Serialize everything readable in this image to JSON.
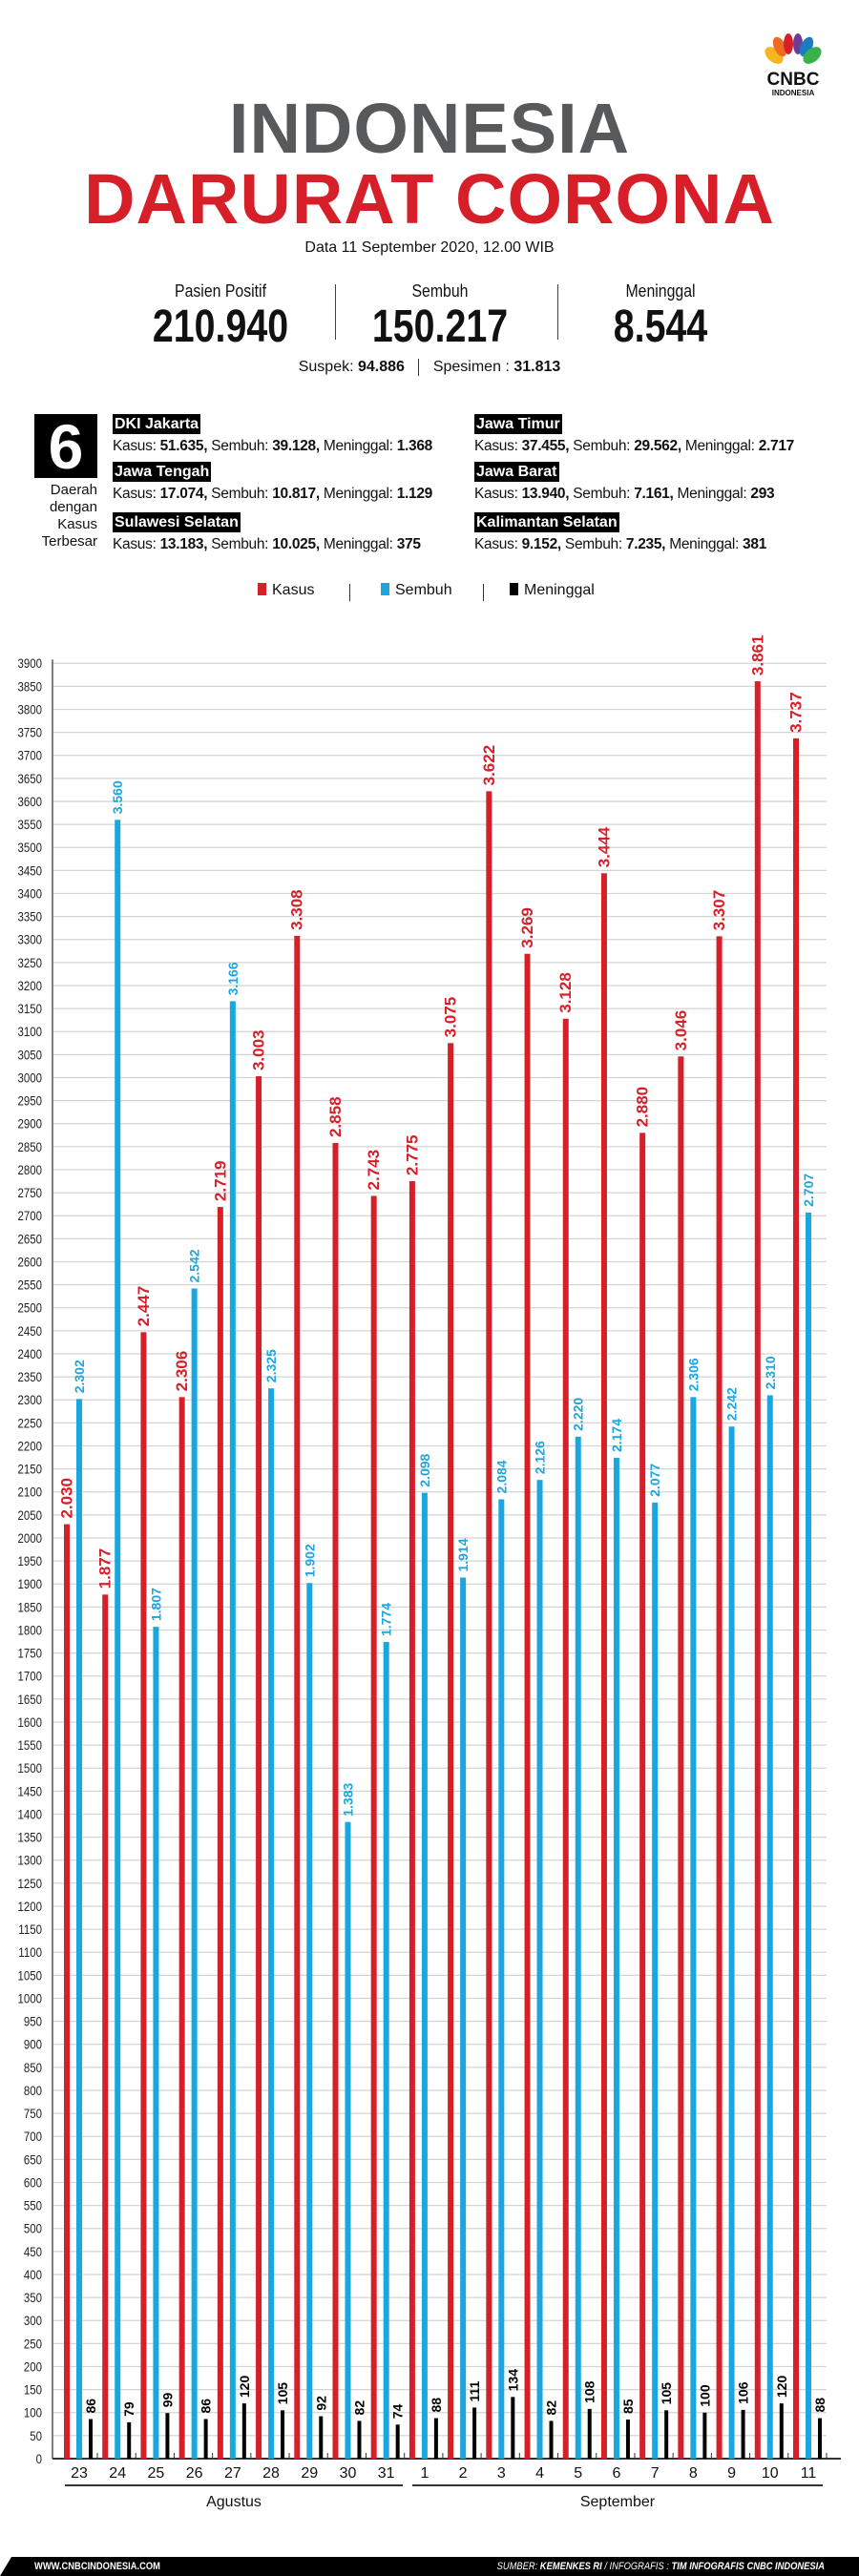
{
  "brand": {
    "logo_text": "CNBC",
    "logo_sub": "INDONESIA"
  },
  "header": {
    "title_line1": "INDONESIA",
    "title_line2": "DARURAT CORONA",
    "subtitle": "Data 11 September 2020, 12.00 WIB"
  },
  "stats": {
    "positif": {
      "label": "Pasien Positif",
      "value": "210.940"
    },
    "sembuh": {
      "label": "Sembuh",
      "value": "150.217"
    },
    "meninggal": {
      "label": "Meninggal",
      "value": "8.544"
    },
    "suspek_label": "Suspek:",
    "suspek_value": "94.886",
    "spesimen_label": "Spesimen :",
    "spesimen_value": "31.813"
  },
  "regions_box": {
    "number": "6",
    "caption": [
      "Daerah",
      "dengan",
      "Kasus",
      "Terbesar"
    ]
  },
  "region_labels": {
    "kasus": "Kasus:",
    "sembuh": "Sembuh:",
    "meninggal": "Meninggal:"
  },
  "regions": [
    {
      "name": "DKI Jakarta",
      "kasus": "51.635,",
      "sembuh": "39.128,",
      "meninggal": "1.368"
    },
    {
      "name": "Jawa Timur",
      "kasus": "37.455,",
      "sembuh": "29.562,",
      "meninggal": "2.717"
    },
    {
      "name": "Jawa Tengah",
      "kasus": "17.074,",
      "sembuh": "10.817,",
      "meninggal": "1.129"
    },
    {
      "name": "Jawa Barat",
      "kasus": "13.940,",
      "sembuh": "7.161,",
      "meninggal": "293"
    },
    {
      "name": "Sulawesi Selatan",
      "kasus": "13.183,",
      "sembuh": "10.025,",
      "meninggal": "375"
    },
    {
      "name": "Kalimantan Selatan",
      "kasus": "9.152,",
      "sembuh": "7.235,",
      "meninggal": "381"
    }
  ],
  "colors": {
    "kasus": "#d71f2a",
    "sembuh": "#1aa7e0",
    "meninggal": "#000000",
    "grid": "#d4d4d4",
    "title_gray": "#58595b"
  },
  "chart_data": {
    "type": "bar",
    "title": "",
    "xlabel": "",
    "ylabel": "",
    "ylim": [
      0,
      3900
    ],
    "ytick_step": 50,
    "grid": true,
    "legend_position": "top-center",
    "categories": [
      "23",
      "24",
      "25",
      "26",
      "27",
      "28",
      "29",
      "30",
      "31",
      "1",
      "2",
      "3",
      "4",
      "5",
      "6",
      "7",
      "8",
      "9",
      "10",
      "11"
    ],
    "months": [
      {
        "name": "Agustus",
        "from": 0,
        "to": 8
      },
      {
        "name": "September",
        "from": 9,
        "to": 19
      }
    ],
    "series": [
      {
        "name": "Kasus",
        "key": "kasus",
        "values": [
          2030,
          1877,
          2447,
          2306,
          2719,
          3003,
          3308,
          2858,
          2743,
          2775,
          3075,
          3622,
          3269,
          3128,
          3444,
          2880,
          3046,
          3307,
          3861,
          3737
        ]
      },
      {
        "name": "Sembuh",
        "key": "sembuh",
        "values": [
          2302,
          3560,
          1807,
          2542,
          3166,
          2325,
          1902,
          1383,
          1774,
          2098,
          1914,
          2084,
          2126,
          2220,
          2174,
          2077,
          2306,
          2242,
          2310,
          2707
        ]
      },
      {
        "name": "Meninggal",
        "key": "meninggal",
        "values": [
          86,
          79,
          99,
          86,
          120,
          105,
          92,
          82,
          74,
          88,
          111,
          134,
          82,
          108,
          85,
          105,
          100,
          106,
          120,
          88
        ]
      }
    ]
  },
  "footer": {
    "website": "WWW.CNBCINDONESIA.COM",
    "source_label": "SUMBER:",
    "source": "KEMENKES RI",
    "infografis_label": " / INFOGRAFIS :",
    "infografis": "TIM INFOGRAFIS CNBC INDONESIA"
  }
}
